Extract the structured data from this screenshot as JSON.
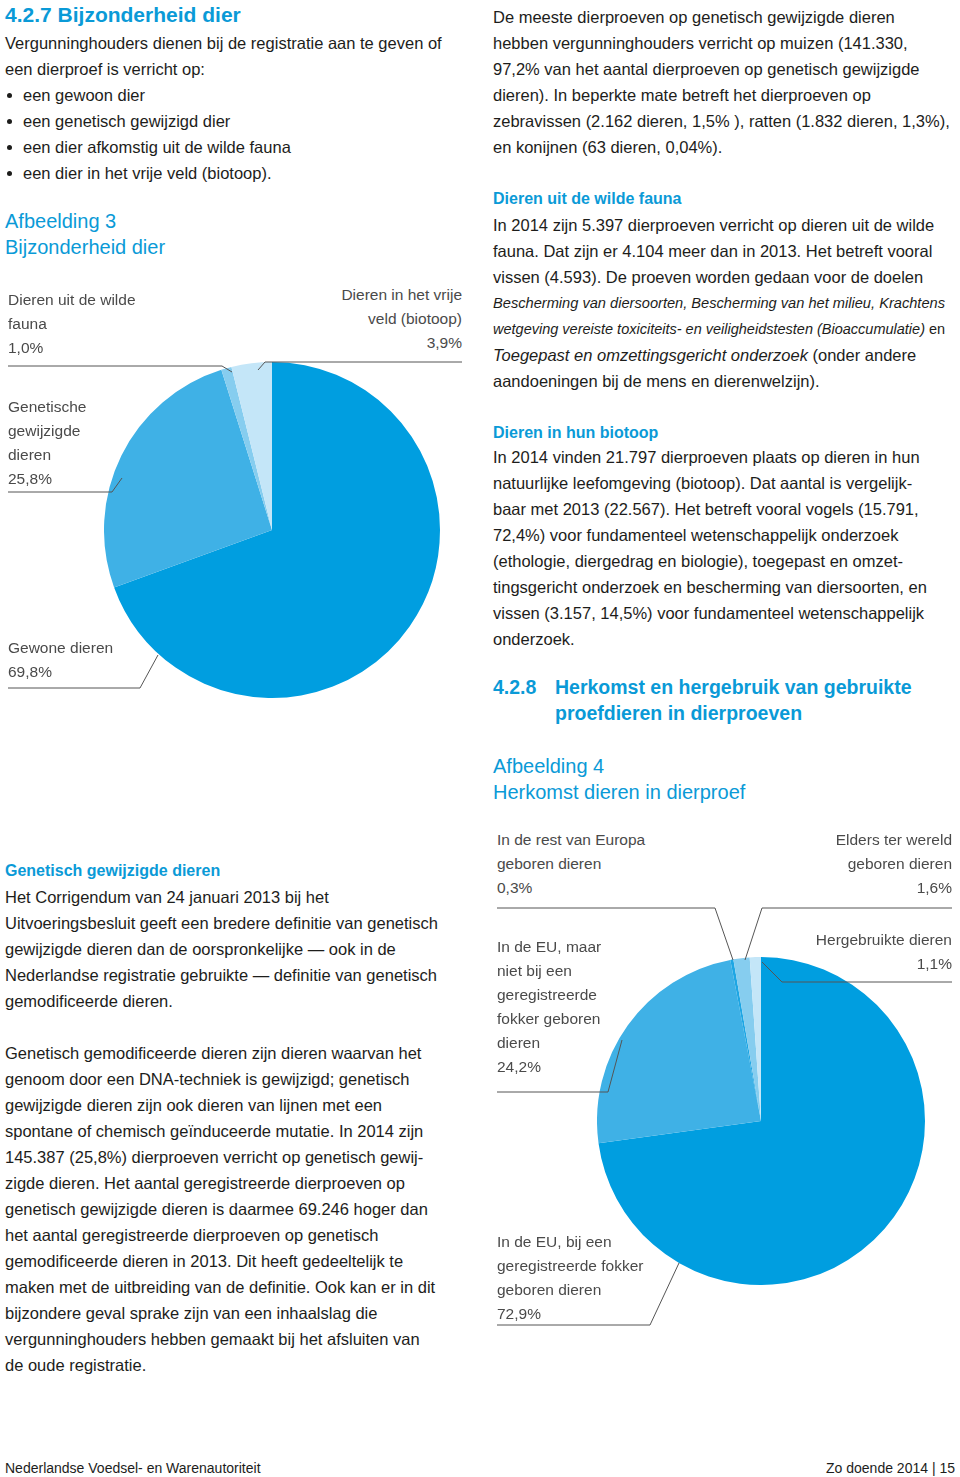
{
  "document": {
    "heading": {
      "number": "4.2.7",
      "title": "Bijzonderheid dier"
    },
    "intro": [
      "Vergunninghouders dienen bij de registratie aan te geven of",
      "een dierproef is verricht op:"
    ],
    "bullets": [
      "een gewoon dier",
      "een genetisch gewijzigd dier",
      "een dier afkomstig uit de wilde fauna",
      "een dier in het vrije veld (biotoop)."
    ],
    "left_section": {
      "title": "Genetisch gewijzigde dieren",
      "paragraphs": [
        [
          "Het Corrigendum van 24 januari 2013 bij het",
          "Uitvoeringsbesluit geeft een bredere definitie van genetisch",
          "gewijzigde dieren dan de oorspronkelijke — ook in de",
          "Nederlandse registratie gebruikte — definitie van genetisch",
          "gemodificeerde dieren."
        ],
        [
          "Genetisch gemodificeerde dieren zijn dieren waarvan het",
          "genoom door een DNA-techniek is gewijzigd; genetisch",
          "gewijzigde dieren zijn ook dieren van lijnen met een",
          "spontane of chemisch geïnduceerde mutatie. In 2014 zijn",
          "145.387 (25,8%) dierproeven verricht op genetisch gewij-",
          "zigde dieren. Het aantal geregistreerde dierproeven op",
          "genetisch gewijzigde dieren is daarmee 69.246 hoger dan",
          "het aantal geregistreerde dierproeven op genetisch",
          "gemodificeerde dieren in 2013. Dit heeft gedeeltelijk te",
          "maken met de uitbreiding van de definitie. Ook kan er in dit",
          "bijzondere geval sprake zijn van een inhaalslag die",
          "vergunninghouders hebben gemaakt bij het afsluiten van",
          "de oude registratie."
        ]
      ]
    },
    "right_top": {
      "paragraphs": [
        [
          "De meeste dierproeven op genetisch gewijzigde dieren",
          "hebben vergunninghouders verricht op muizen (141.330,",
          "97,2% van het aantal dierproeven op genetisch gewijzigde",
          "dieren). In beperkte mate betreft het dierproeven op",
          "zebravissen (2.162 dieren, 1,5% ), ratten (1.832 dieren, 1,3%),",
          "en konijnen (63 dieren, 0,04%)."
        ]
      ]
    },
    "right_sections": [
      {
        "title": "Dieren uit de wilde fauna",
        "paragraphs": [
          [
            "In 2014 zijn 5.397 dierproeven verricht op dieren uit de wilde",
            "fauna. Dat zijn er 4.104 meer dan in 2013. Het betreft vooral",
            "vissen (4.593). De proeven worden gedaan voor de doelen",
            [
              {
                "text": "Bescherming van diersoorten, Bescherming van het milieu, Krachtens",
                "italic": true
              }
            ],
            [
              {
                "text": "wetgeving vereiste toxiciteits- en veiligheidstesten (Bioaccumulatie)",
                "italic": true
              },
              {
                "text": " en",
                "italic": false
              }
            ],
            [
              {
                "text": "Toegepast en omzettingsgericht onderzoek",
                "italic": true
              },
              {
                "text": " (onder andere",
                "italic": false
              }
            ],
            "aandoeningen bij de mens en dierenwelzijn)."
          ]
        ]
      },
      {
        "title": "Dieren in hun biotoop",
        "paragraphs": [
          [
            "In 2014 vinden 21.797 dierproeven plaats op dieren in hun",
            "natuurlijke leefomgeving (biotoop). Dat aantal is vergelijk-",
            "baar met 2013 (22.567). Het betreft vooral vogels (15.791,",
            "72,4%) voor fundamenteel wetenschappelijk onderzoek",
            "(ethologie, diergedrag en biologie), toegepast en omzet-",
            "tingsgericht onderzoek en bescherming van diersoorten, en",
            "vissen (3.157, 14,5%) voor fundamenteel wetenschappelijk",
            "onderzoek."
          ]
        ]
      }
    ],
    "next_section": {
      "number": "4.2.8",
      "title": [
        "Herkomst en hergebruik van gebruikte",
        "proefdieren in dierproeven"
      ]
    },
    "footer": {
      "left": "Nederlandse Voedsel- en Warenautoriteit",
      "right": "Zo doende 2014 | 15"
    }
  },
  "chart_data": [
    {
      "type": "pie",
      "title": "Afbeelding 3",
      "subtitle": "Bijzonderheid dier",
      "categories": [
        "Gewone dieren",
        "Genetische gewijzigde dieren",
        "Dieren uit de wilde fauna",
        "Dieren in het vrije veld (biotoop)"
      ],
      "values": [
        69.8,
        25.8,
        1.0,
        3.9
      ],
      "value_labels": [
        "69,8%",
        "25,8%",
        "1,0%",
        "3,9%"
      ],
      "colors": [
        "#009ee0",
        "#3fb1e6",
        "#86cdef",
        "#c4e6f8"
      ],
      "data_labels": true
    },
    {
      "type": "pie",
      "title": "Afbeelding 4",
      "subtitle": "Herkomst dieren in dierproef",
      "categories": [
        "In de EU, bij een geregistreerde fokker geboren dieren",
        "In de EU, maar niet bij een geregistreerde fokker geboren dieren",
        "In de rest van Europa geboren dieren",
        "Elders ter wereld geboren dieren",
        "Hergebruikte dieren"
      ],
      "values": [
        72.9,
        24.2,
        0.3,
        1.6,
        1.1
      ],
      "value_labels": [
        "72,9%",
        "24,2%",
        "0,3%",
        "1,6%",
        "1,1%"
      ],
      "colors": [
        "#009ee0",
        "#3fb1e6",
        "#1ea6e4",
        "#86cdef",
        "#c4e6f8"
      ],
      "data_labels": true
    }
  ]
}
